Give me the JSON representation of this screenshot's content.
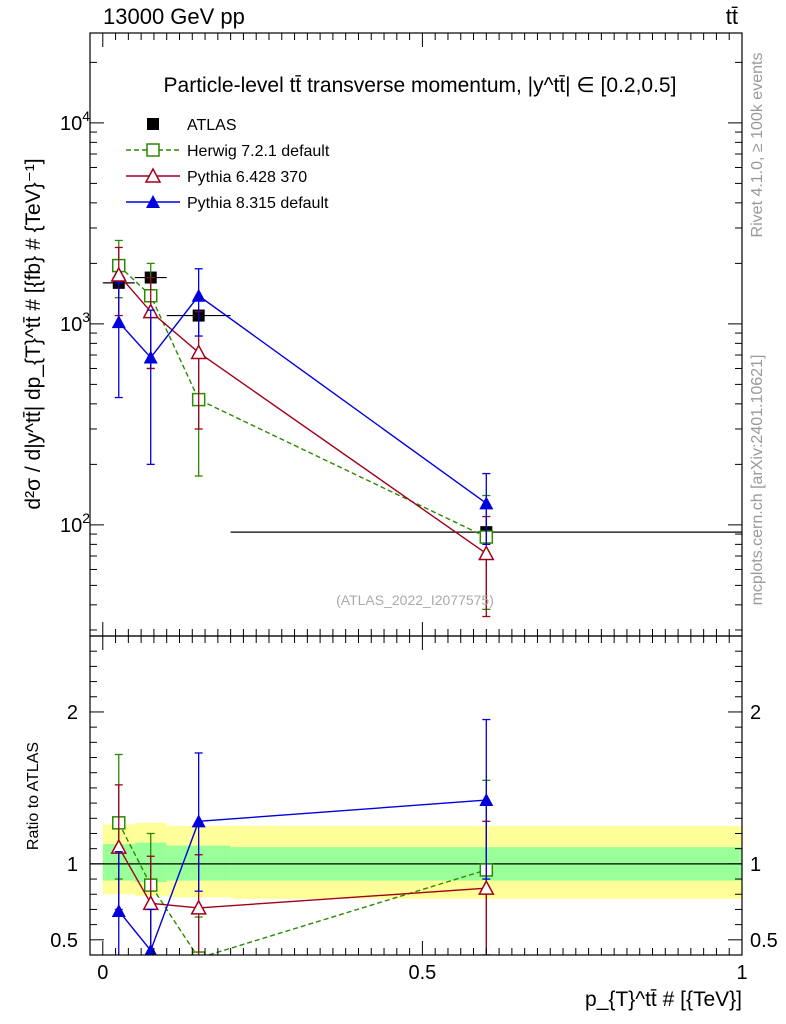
{
  "header": {
    "energy_label": "13000 GeV pp",
    "process_label": "tt̄"
  },
  "side": {
    "rivet_label": "Rivet 4.1.0, ≥ 100k events",
    "source_label": "mcplots.cern.ch [arXiv:2401.10621]"
  },
  "colors": {
    "atlas": "#000000",
    "herwig": "#2a8a00",
    "pythia6": "#a0001c",
    "pythia8": "#0000dd",
    "band_outer": "#ffff99",
    "band_inner": "#99ff99"
  },
  "chart_data": [
    {
      "type": "scatter",
      "panel": "main",
      "title": "Particle-level tt̄ transverse momentum, |y^tt̄| ∈ [0.2,0.5]",
      "ylabel": "d²σ / d|y^tt̄| dp_{T}^tt̄ # [{fb} # {TeV}⁻¹]",
      "yscale": "log",
      "ylim": [
        28,
        28000
      ],
      "xlim": [
        -0.02,
        1.0
      ],
      "yticks": [
        {
          "value": 100,
          "base": "10",
          "exp": "2"
        },
        {
          "value": 1000,
          "base": "10",
          "exp": "3"
        },
        {
          "value": 10000,
          "base": "10",
          "exp": "4"
        }
      ],
      "watermark": "(ATLAS_2022_I2077575)",
      "series": [
        {
          "key": "atlas",
          "name": "ATLAS",
          "style": "data",
          "x": [
            0.025,
            0.075,
            0.15,
            0.6
          ],
          "xerr": [
            0.025,
            0.025,
            0.05,
            0.4
          ],
          "y": [
            1600,
            1700,
            1100,
            92
          ],
          "ylo": [
            1600,
            1700,
            1100,
            92
          ],
          "yhi": [
            1600,
            1700,
            1100,
            92
          ]
        },
        {
          "key": "herwig",
          "name": "Herwig 7.2.1 default",
          "style": "open-square-dashed",
          "x": [
            0.025,
            0.075,
            0.15,
            0.6
          ],
          "y": [
            1950,
            1380,
            420,
            87
          ],
          "ylo": [
            1350,
            600,
            175,
            38
          ],
          "yhi": [
            2600,
            2000,
            720,
            140
          ]
        },
        {
          "key": "pythia6",
          "name": "Pythia 6.428 370",
          "style": "open-triangle",
          "x": [
            0.025,
            0.075,
            0.15,
            0.6
          ],
          "y": [
            1750,
            1150,
            720,
            72
          ],
          "ylo": [
            1100,
            600,
            300,
            35
          ],
          "yhi": [
            2400,
            1700,
            1150,
            110
          ]
        },
        {
          "key": "pythia8",
          "name": "Pythia 8.315 default",
          "style": "filled-triangle",
          "x": [
            0.025,
            0.075,
            0.15,
            0.6
          ],
          "y": [
            1020,
            680,
            1380,
            128
          ],
          "ylo": [
            430,
            200,
            870,
            80
          ],
          "yhi": [
            1600,
            1170,
            1880,
            180
          ]
        }
      ]
    },
    {
      "type": "scatter",
      "panel": "ratio",
      "ylabel": "Ratio to ATLAS",
      "xlabel": "p_{T}^tt̄ # [{TeV}]",
      "ylim": [
        0.4,
        2.5
      ],
      "xlim": [
        -0.02,
        1.0
      ],
      "xticks": [
        {
          "value": 0,
          "label": "0"
        },
        {
          "value": 0.5,
          "label": "0.5"
        },
        {
          "value": 1,
          "label": "1"
        }
      ],
      "yticks": [
        {
          "value": 0.5,
          "label": "0.5"
        },
        {
          "value": 1,
          "label": "1"
        },
        {
          "value": 2,
          "label": "2"
        }
      ],
      "bands": {
        "edges": [
          0,
          0.05,
          0.1,
          0.2,
          1.0
        ],
        "inner": [
          [
            0.89,
            1.13
          ],
          [
            0.88,
            1.14
          ],
          [
            0.89,
            1.12
          ],
          [
            0.89,
            1.11
          ]
        ],
        "outer": [
          [
            0.8,
            1.26
          ],
          [
            0.79,
            1.27
          ],
          [
            0.78,
            1.25
          ],
          [
            0.77,
            1.25
          ]
        ]
      },
      "series": [
        {
          "key": "herwig",
          "y": [
            1.27,
            0.86,
            0.38,
            0.96
          ],
          "ylo": [
            0.9,
            0.35,
            0.16,
            0.4
          ],
          "yhi": [
            1.72,
            1.2,
            0.65,
            1.55
          ]
        },
        {
          "key": "pythia6",
          "y": [
            1.11,
            0.74,
            0.71,
            0.84
          ],
          "ylo": [
            0.7,
            0.35,
            0.28,
            0.4
          ],
          "yhi": [
            1.52,
            1.05,
            1.06,
            1.28
          ]
        },
        {
          "key": "pythia8",
          "y": [
            0.69,
            0.43,
            1.28,
            1.42
          ],
          "ylo": [
            0.28,
            0.12,
            0.82,
            0.9
          ],
          "yhi": [
            1.08,
            0.7,
            1.73,
            1.95
          ]
        }
      ]
    }
  ]
}
